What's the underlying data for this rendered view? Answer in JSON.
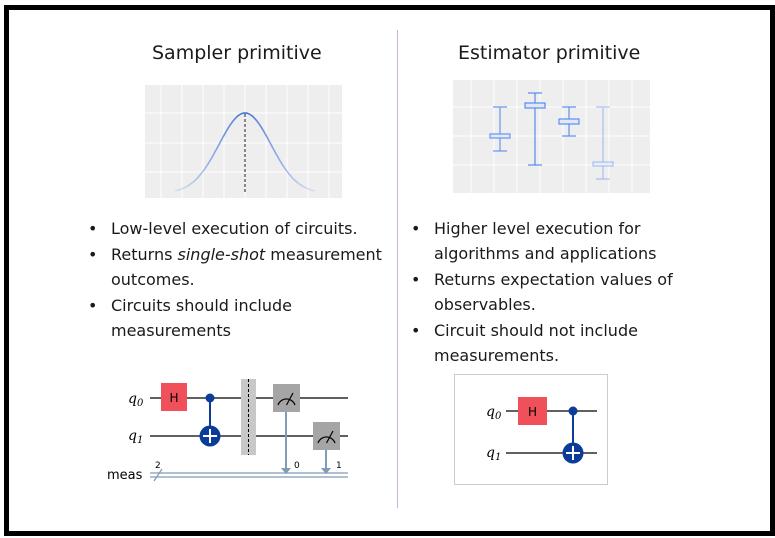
{
  "left": {
    "title": "Sampler primitive",
    "bullets": [
      {
        "pre": "Low-level execution of circuits.",
        "em": "",
        "post": ""
      },
      {
        "pre": "Returns ",
        "em": "single-shot",
        "post": " measurement outcomes."
      },
      {
        "pre": "Circuits should include measurements",
        "em": "",
        "post": ""
      }
    ],
    "circuit": {
      "qubits": [
        "q",
        "q"
      ],
      "subscripts": [
        "0",
        "1"
      ],
      "gate_h": "H",
      "classical_label": "meas",
      "classical_width": "2",
      "bit_labels": [
        "0",
        "1"
      ]
    }
  },
  "right": {
    "title": "Estimator primitive",
    "bullets": [
      {
        "pre": "Higher level execution for algorithms and applications",
        "em": "",
        "post": ""
      },
      {
        "pre": "Returns expectation values of observables.",
        "em": "",
        "post": ""
      },
      {
        "pre": "Circuit should not include measurements.",
        "em": "",
        "post": ""
      }
    ],
    "circuit": {
      "qubits": [
        "q",
        "q"
      ],
      "subscripts": [
        "0",
        "1"
      ],
      "gate_h": "H"
    }
  },
  "bullet_symbol": "•",
  "colors": {
    "h_gate": "#f0505a",
    "cnot": "#0b3c9a",
    "measure": "#a5a5a5",
    "barrier": "#c8c8c8",
    "classical": "#7f9bb5",
    "curve": "#5f8fea",
    "box": "#4f86f0"
  }
}
